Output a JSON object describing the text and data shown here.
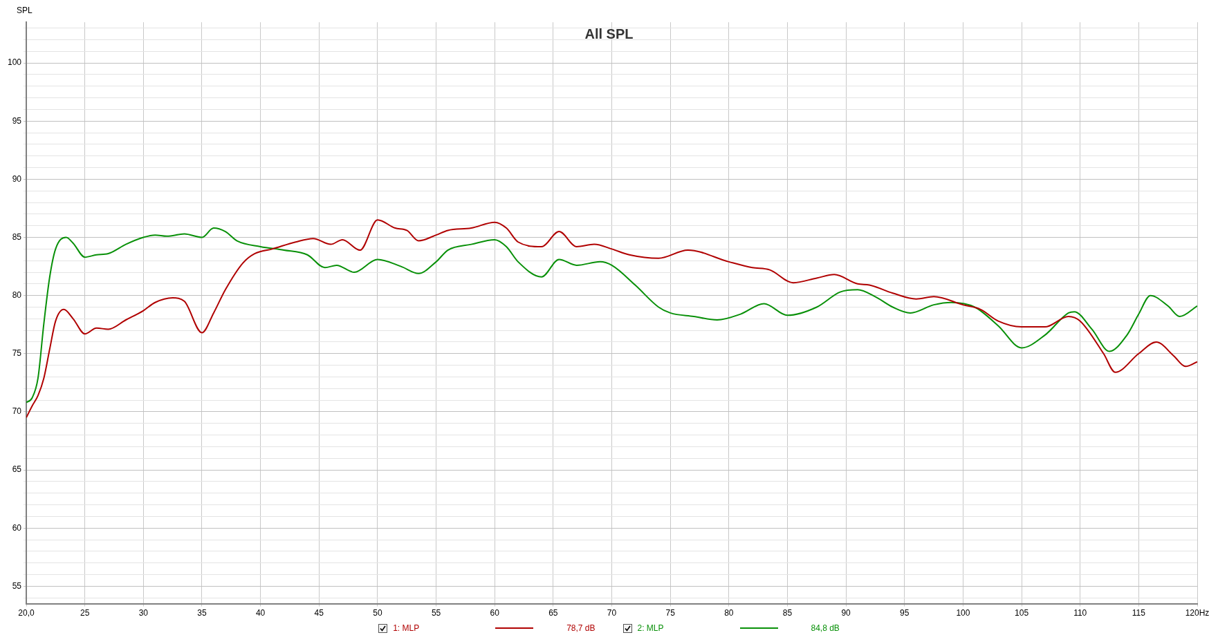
{
  "chart_data": {
    "type": "line",
    "title": "All SPL",
    "ylabel": "SPL",
    "legend": "bottom",
    "grid": true,
    "marker": "none",
    "line_style": "solid",
    "xlim": [
      20,
      120
    ],
    "ylim": [
      53.5,
      103.5
    ],
    "xticks": [
      {
        "value": 20,
        "label": "20,0"
      },
      25,
      30,
      35,
      40,
      45,
      50,
      55,
      60,
      65,
      70,
      75,
      80,
      85,
      90,
      95,
      100,
      105,
      110,
      115,
      {
        "value": 120,
        "label": "120Hz"
      }
    ],
    "yticks": [
      {
        "value": 54,
        "label": null
      },
      55,
      {
        "value": 56,
        "label": null
      },
      {
        "value": 57,
        "label": null
      },
      {
        "value": 58,
        "label": null
      },
      {
        "value": 59,
        "label": null
      },
      60,
      {
        "value": 61,
        "label": null
      },
      {
        "value": 62,
        "label": null
      },
      {
        "value": 63,
        "label": null
      },
      {
        "value": 64,
        "label": null
      },
      65,
      {
        "value": 66,
        "label": null
      },
      {
        "value": 67,
        "label": null
      },
      {
        "value": 68,
        "label": null
      },
      {
        "value": 69,
        "label": null
      },
      70,
      {
        "value": 71,
        "label": null
      },
      {
        "value": 72,
        "label": null
      },
      {
        "value": 73,
        "label": null
      },
      {
        "value": 74,
        "label": null
      },
      75,
      {
        "value": 76,
        "label": null
      },
      {
        "value": 77,
        "label": null
      },
      {
        "value": 78,
        "label": null
      },
      {
        "value": 79,
        "label": null
      },
      80,
      {
        "value": 81,
        "label": null
      },
      {
        "value": 82,
        "label": null
      },
      {
        "value": 83,
        "label": null
      },
      {
        "value": 84,
        "label": null
      },
      85,
      {
        "value": 86,
        "label": null
      },
      {
        "value": 87,
        "label": null
      },
      {
        "value": 88,
        "label": null
      },
      {
        "value": 89,
        "label": null
      },
      90,
      {
        "value": 91,
        "label": null
      },
      {
        "value": 92,
        "label": null
      },
      {
        "value": 93,
        "label": null
      },
      {
        "value": 94,
        "label": null
      },
      95,
      {
        "value": 96,
        "label": null
      },
      {
        "value": 97,
        "label": null
      },
      {
        "value": 98,
        "label": null
      },
      {
        "value": 99,
        "label": null
      },
      100,
      {
        "value": 101,
        "label": null
      },
      {
        "value": 102,
        "label": null
      },
      {
        "value": 103,
        "label": null
      }
    ],
    "annotations": [
      "78,7 dB",
      "84,8 dB"
    ],
    "series": [
      {
        "name": "1: MLP",
        "color": "#b00000",
        "x": [
          20,
          20.5,
          21,
          21.5,
          22,
          22.5,
          23.2,
          24,
          25,
          26,
          27,
          28.5,
          30,
          31,
          32.5,
          33.5,
          35,
          36,
          37,
          38.5,
          39.5,
          41,
          43,
          44.5,
          46,
          47,
          48.5,
          50,
          51.5,
          52.5,
          53.5,
          55,
          56,
          58,
          60,
          61,
          62,
          64,
          65.5,
          67,
          68.5,
          70,
          71.5,
          74,
          76.5,
          80,
          82,
          83.5,
          85.5,
          87.5,
          89,
          91,
          92,
          94,
          96,
          97.5,
          100,
          101.5,
          103,
          105,
          107,
          109,
          110,
          112,
          113,
          115,
          116.5,
          118,
          119,
          120
        ],
        "values": [
          69.5,
          70.5,
          71.4,
          72.9,
          75.4,
          77.8,
          78.8,
          78.0,
          76.7,
          77.2,
          77.1,
          77.9,
          78.7,
          79.4,
          79.8,
          79.5,
          76.8,
          78.5,
          80.5,
          82.8,
          83.6,
          84.0,
          84.6,
          84.9,
          84.4,
          84.8,
          83.9,
          86.5,
          85.8,
          85.6,
          84.7,
          85.2,
          85.6,
          85.8,
          86.3,
          85.8,
          84.6,
          84.2,
          85.5,
          84.2,
          84.4,
          84.0,
          83.5,
          83.2,
          83.9,
          82.9,
          82.4,
          82.2,
          81.1,
          81.5,
          81.8,
          81.0,
          80.9,
          80.2,
          79.7,
          79.9,
          79.2,
          78.8,
          77.8,
          77.3,
          77.3,
          78.2,
          77.8,
          75.0,
          73.4,
          75.0,
          76.0,
          74.8,
          73.9,
          74.3
        ]
      },
      {
        "name": "2: MLP",
        "color": "#089008",
        "x": [
          20,
          20.5,
          21,
          21.5,
          22,
          22.5,
          23.4,
          24,
          25,
          26,
          27,
          28.5,
          30,
          31,
          32,
          33.5,
          35,
          36,
          37,
          38,
          40,
          42,
          44,
          45.5,
          46.5,
          48,
          50,
          52,
          53.5,
          55,
          56,
          58,
          60,
          61,
          62,
          64,
          65.5,
          67,
          69,
          70,
          72,
          74,
          75,
          77,
          79,
          81,
          83,
          85,
          87.5,
          89.5,
          91,
          92.5,
          94,
          95.5,
          97.5,
          99,
          101,
          103,
          105,
          107,
          109,
          109.5,
          111,
          112.5,
          114,
          115,
          116,
          117.5,
          118.5,
          120
        ],
        "values": [
          70.8,
          71.2,
          72.9,
          77.6,
          81.6,
          84.0,
          85.0,
          84.5,
          83.3,
          83.5,
          83.6,
          84.4,
          85.0,
          85.2,
          85.1,
          85.3,
          85.0,
          85.8,
          85.5,
          84.7,
          84.2,
          83.9,
          83.5,
          82.4,
          82.6,
          82.0,
          83.1,
          82.5,
          81.9,
          82.9,
          83.9,
          84.4,
          84.8,
          84.2,
          82.9,
          81.6,
          83.1,
          82.6,
          82.9,
          82.6,
          80.9,
          79.0,
          78.5,
          78.2,
          77.9,
          78.4,
          79.3,
          78.3,
          79.0,
          80.3,
          80.5,
          79.9,
          79.0,
          78.5,
          79.2,
          79.4,
          79.0,
          77.4,
          75.5,
          76.6,
          78.5,
          78.6,
          77.1,
          75.2,
          76.6,
          78.4,
          80.0,
          79.1,
          78.2,
          79.1
        ]
      }
    ]
  }
}
